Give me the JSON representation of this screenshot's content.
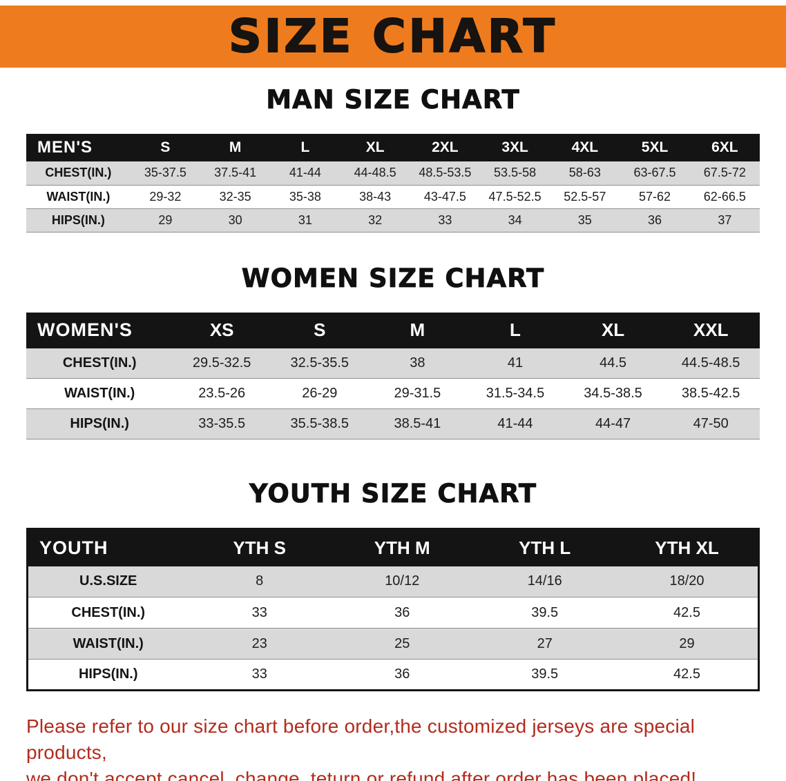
{
  "banner": {
    "title": "SIZE CHART",
    "bg_color": "#ee7c1e",
    "text_color": "#171310"
  },
  "chart_data": [
    {
      "type": "table",
      "name": "men-size-table",
      "title": "MAN SIZE CHART",
      "columns": [
        "MEN'S",
        "S",
        "M",
        "L",
        "XL",
        "2XL",
        "3XL",
        "4XL",
        "5XL",
        "6XL"
      ],
      "rows": [
        [
          "CHEST(IN.)",
          "35-37.5",
          "37.5-41",
          "41-44",
          "44-48.5",
          "48.5-53.5",
          "53.5-58",
          "58-63",
          "63-67.5",
          "67.5-72"
        ],
        [
          "WAIST(IN.)",
          "29-32",
          "32-35",
          "35-38",
          "38-43",
          "43-47.5",
          "47.5-52.5",
          "52.5-57",
          "57-62",
          "62-66.5"
        ],
        [
          "HIPS(IN.)",
          "29",
          "30",
          "31",
          "32",
          "33",
          "34",
          "35",
          "36",
          "37"
        ]
      ]
    },
    {
      "type": "table",
      "name": "women-size-table",
      "title": "WOMEN SIZE CHART",
      "columns": [
        "WOMEN'S",
        "XS",
        "S",
        "M",
        "L",
        "XL",
        "XXL"
      ],
      "rows": [
        [
          "CHEST(IN.)",
          "29.5-32.5",
          "32.5-35.5",
          "38",
          "41",
          "44.5",
          "44.5-48.5"
        ],
        [
          "WAIST(IN.)",
          "23.5-26",
          "26-29",
          "29-31.5",
          "31.5-34.5",
          "34.5-38.5",
          "38.5-42.5"
        ],
        [
          "HIPS(IN.)",
          "33-35.5",
          "35.5-38.5",
          "38.5-41",
          "41-44",
          "44-47",
          "47-50"
        ]
      ]
    },
    {
      "type": "table",
      "name": "youth-size-table",
      "title": "YOUTH SIZE CHART",
      "columns": [
        "YOUTH",
        "YTH S",
        "YTH M",
        "YTH L",
        "YTH XL"
      ],
      "rows": [
        [
          "U.S.SIZE",
          "8",
          "10/12",
          "14/16",
          "18/20"
        ],
        [
          "CHEST(IN.)",
          "33",
          "36",
          "39.5",
          "42.5"
        ],
        [
          "WAIST(IN.)",
          "23",
          "25",
          "27",
          "29"
        ],
        [
          "HIPS(IN.)",
          "33",
          "36",
          "39.5",
          "42.5"
        ]
      ]
    }
  ],
  "disclaimer": {
    "color": "#b32b1d",
    "lines": [
      "Please refer to our size chart before order,the customized jerseys are special products,",
      "we don't accept cancel, change, teturn or refund after order has been placed!"
    ]
  }
}
